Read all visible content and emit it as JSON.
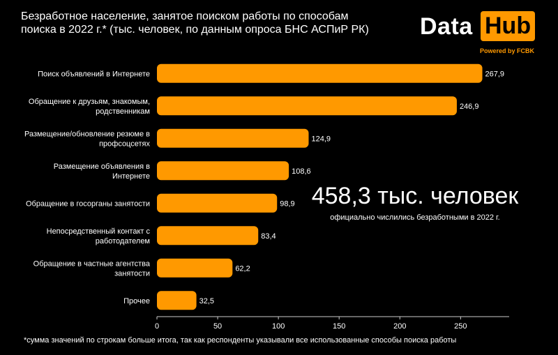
{
  "title_lines": [
    "Безработное население, занятое поиском работы по способам",
    "поиска в 2022 г.* (тыс. человек, по данным опроса БНС АСПиР РК)"
  ],
  "logo": {
    "word1": "Data",
    "word2": "Hub",
    "powered_by": "Powered by FCBK"
  },
  "callout": {
    "value": "458,3 тыс. человек",
    "caption": "официально числились безработными в 2022 г."
  },
  "footnote": "*сумма значений по строкам больше итога, так как респонденты указывали все использованные способы поиска работы",
  "colors": {
    "background": "#000000",
    "bar": "#ff9900",
    "text": "#ffffff",
    "axis": "#cccccc"
  },
  "chart_data": {
    "type": "bar",
    "orientation": "horizontal",
    "categories": [
      [
        "Поиск объявлений в Интернете"
      ],
      [
        "Обращение к друзьям, знакомым,",
        "родственникам"
      ],
      [
        "Размещение/обновление резюме в",
        "профсоцсетях"
      ],
      [
        "Размещение объявления в",
        "Интернете"
      ],
      [
        "Обращение в госорганы занятости"
      ],
      [
        "Непосредственный контакт с",
        "работодателем"
      ],
      [
        "Обращение в частные агентства",
        "занятости"
      ],
      [
        "Прочее"
      ]
    ],
    "values": [
      267.9,
      246.9,
      124.9,
      108.6,
      98.9,
      83.4,
      62.2,
      32.5
    ],
    "value_labels": [
      "267,9",
      "246,9",
      "124,9",
      "108,6",
      "98,9",
      "83,4",
      "62,2",
      "32,5"
    ],
    "xlim": [
      0,
      290
    ],
    "xticks": [
      0,
      50,
      100,
      150,
      200,
      250
    ],
    "xlabel": "",
    "ylabel": ""
  }
}
